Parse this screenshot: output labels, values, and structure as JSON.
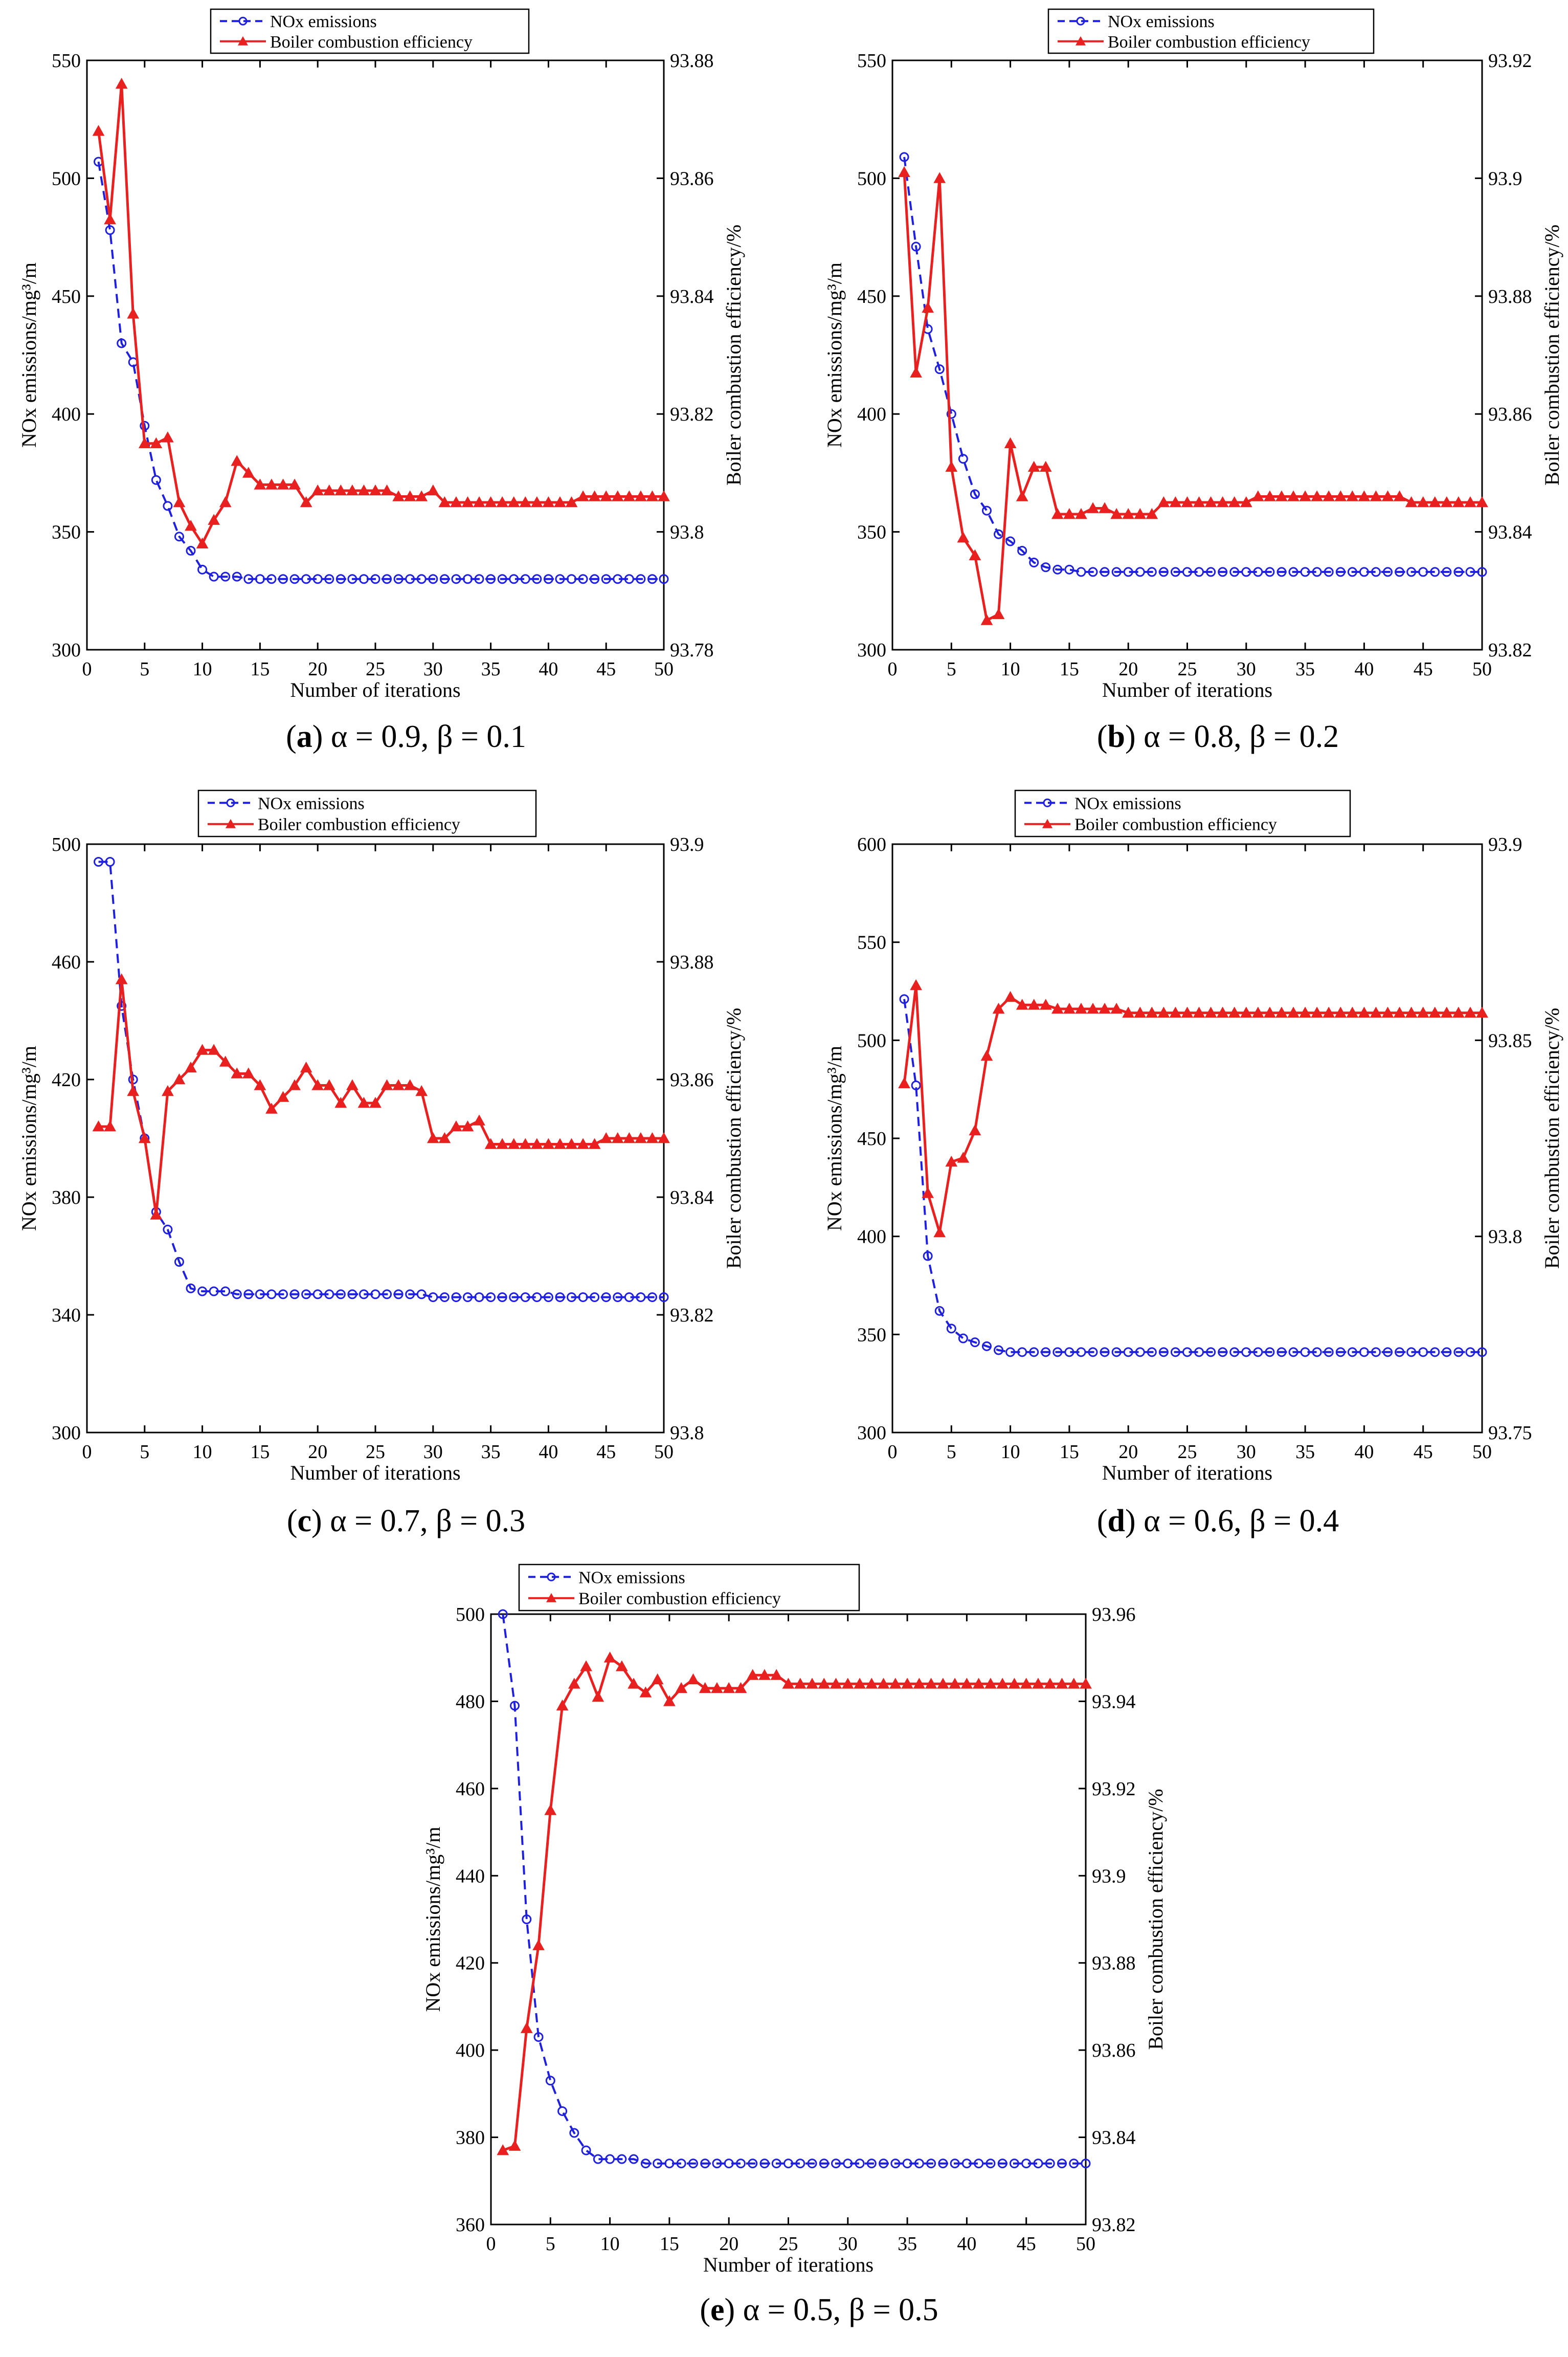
{
  "figure": {
    "legend_nox": "NOx emissions",
    "legend_eff": "Boiler combustion efficiency",
    "nox_color": "#1f1fe0",
    "eff_color": "#e8201f"
  },
  "chart_data": [
    {
      "id": "a",
      "type": "line",
      "caption": {
        "letter": "a",
        "text": " α = 0.9, β = 0.1"
      },
      "xlabel": "Number of iterations",
      "ylabel": "NOx emissions/mg³/m",
      "ylabel2": "Boiler combustion efficiency/%",
      "xlim": [
        0,
        50
      ],
      "ylim": [
        300,
        550
      ],
      "ylim2": [
        93.78,
        93.88
      ],
      "xticks": [
        "0",
        "5",
        "10",
        "15",
        "20",
        "25",
        "30",
        "35",
        "40",
        "45",
        "50"
      ],
      "yticks": [
        "300",
        "350",
        "400",
        "450",
        "500",
        "550"
      ],
      "yticks2": [
        "93.78",
        "93.8",
        "93.82",
        "93.84",
        "93.86",
        "93.88"
      ],
      "series": [
        {
          "name": "NOx emissions",
          "axis": "left",
          "marker": "circle",
          "values": [
            507,
            478,
            430,
            422,
            395,
            372,
            361,
            348,
            342,
            334,
            331,
            331,
            331,
            330,
            330,
            330,
            330,
            330,
            330,
            330,
            330,
            330,
            330,
            330,
            330,
            330,
            330,
            330,
            330,
            330,
            330,
            330,
            330,
            330,
            330,
            330,
            330,
            330,
            330,
            330,
            330,
            330,
            330,
            330,
            330,
            330,
            330,
            330,
            330,
            330
          ]
        },
        {
          "name": "Boiler combustion efficiency",
          "axis": "right",
          "marker": "triangle",
          "values": [
            93.868,
            93.853,
            93.876,
            93.837,
            93.815,
            93.815,
            93.816,
            93.805,
            93.801,
            93.798,
            93.802,
            93.805,
            93.812,
            93.81,
            93.808,
            93.808,
            93.808,
            93.808,
            93.805,
            93.807,
            93.807,
            93.807,
            93.807,
            93.807,
            93.807,
            93.807,
            93.806,
            93.806,
            93.806,
            93.807,
            93.805,
            93.805,
            93.805,
            93.805,
            93.805,
            93.805,
            93.805,
            93.805,
            93.805,
            93.805,
            93.805,
            93.805,
            93.806,
            93.806,
            93.806,
            93.806,
            93.806,
            93.806,
            93.806,
            93.806
          ]
        }
      ]
    },
    {
      "id": "b",
      "type": "line",
      "caption": {
        "letter": "b",
        "text": " α = 0.8, β = 0.2"
      },
      "xlabel": "Number of iterations",
      "ylabel": "NOx emissions/mg³/m",
      "ylabel2": "Boiler combustion efficiency/%",
      "xlim": [
        0,
        50
      ],
      "ylim": [
        300,
        550
      ],
      "ylim2": [
        93.82,
        93.92
      ],
      "xticks": [
        "0",
        "5",
        "10",
        "15",
        "20",
        "25",
        "30",
        "35",
        "40",
        "45",
        "50"
      ],
      "yticks": [
        "300",
        "350",
        "400",
        "450",
        "500",
        "550"
      ],
      "yticks2": [
        "93.82",
        "93.84",
        "93.86",
        "93.88",
        "93.9",
        "93.92"
      ],
      "series": [
        {
          "name": "NOx emissions",
          "axis": "left",
          "marker": "circle",
          "values": [
            509,
            471,
            436,
            419,
            400,
            381,
            366,
            359,
            349,
            346,
            342,
            337,
            335,
            334,
            334,
            333,
            333,
            333,
            333,
            333,
            333,
            333,
            333,
            333,
            333,
            333,
            333,
            333,
            333,
            333,
            333,
            333,
            333,
            333,
            333,
            333,
            333,
            333,
            333,
            333,
            333,
            333,
            333,
            333,
            333,
            333,
            333,
            333,
            333,
            333
          ]
        },
        {
          "name": "Boiler combustion efficiency",
          "axis": "right",
          "marker": "triangle",
          "values": [
            93.901,
            93.867,
            93.878,
            93.9,
            93.851,
            93.839,
            93.836,
            93.825,
            93.826,
            93.855,
            93.846,
            93.851,
            93.851,
            93.843,
            93.843,
            93.843,
            93.844,
            93.844,
            93.843,
            93.843,
            93.843,
            93.843,
            93.845,
            93.845,
            93.845,
            93.845,
            93.845,
            93.845,
            93.845,
            93.845,
            93.846,
            93.846,
            93.846,
            93.846,
            93.846,
            93.846,
            93.846,
            93.846,
            93.846,
            93.846,
            93.846,
            93.846,
            93.846,
            93.845,
            93.845,
            93.845,
            93.845,
            93.845,
            93.845,
            93.845
          ]
        }
      ]
    },
    {
      "id": "c",
      "type": "line",
      "caption": {
        "letter": "c",
        "text": " α = 0.7, β = 0.3"
      },
      "xlabel": "Number of iterations",
      "ylabel": "NOx emissions/mg³/m",
      "ylabel2": "Boiler combustion efficiency/%",
      "xlim": [
        0,
        50
      ],
      "ylim": [
        300,
        500
      ],
      "ylim2": [
        93.8,
        93.9
      ],
      "xticks": [
        "0",
        "5",
        "10",
        "15",
        "20",
        "25",
        "30",
        "35",
        "40",
        "45",
        "50"
      ],
      "yticks": [
        "300",
        "340",
        "380",
        "420",
        "460",
        "500"
      ],
      "yticks2": [
        "93.8",
        "93.82",
        "93.84",
        "93.86",
        "93.88",
        "93.9"
      ],
      "series": [
        {
          "name": "NOx emissions",
          "axis": "left",
          "marker": "circle",
          "values": [
            494,
            494,
            445,
            420,
            400,
            375,
            369,
            358,
            349,
            348,
            348,
            348,
            347,
            347,
            347,
            347,
            347,
            347,
            347,
            347,
            347,
            347,
            347,
            347,
            347,
            347,
            347,
            347,
            347,
            346,
            346,
            346,
            346,
            346,
            346,
            346,
            346,
            346,
            346,
            346,
            346,
            346,
            346,
            346,
            346,
            346,
            346,
            346,
            346,
            346
          ]
        },
        {
          "name": "Boiler combustion efficiency",
          "axis": "right",
          "marker": "triangle",
          "values": [
            93.852,
            93.852,
            93.877,
            93.858,
            93.85,
            93.837,
            93.858,
            93.86,
            93.862,
            93.865,
            93.865,
            93.863,
            93.861,
            93.861,
            93.859,
            93.855,
            93.857,
            93.859,
            93.862,
            93.859,
            93.859,
            93.856,
            93.859,
            93.856,
            93.856,
            93.859,
            93.859,
            93.859,
            93.858,
            93.85,
            93.85,
            93.852,
            93.852,
            93.853,
            93.849,
            93.849,
            93.849,
            93.849,
            93.849,
            93.849,
            93.849,
            93.849,
            93.849,
            93.849,
            93.85,
            93.85,
            93.85,
            93.85,
            93.85,
            93.85
          ]
        }
      ]
    },
    {
      "id": "d",
      "type": "line",
      "caption": {
        "letter": "d",
        "text": " α = 0.6, β = 0.4"
      },
      "xlabel": "Number of iterations",
      "ylabel": "NOx emissions/mg³/m",
      "ylabel2": "Boiler combustion efficiency/%",
      "xlim": [
        0,
        50
      ],
      "ylim": [
        300,
        600
      ],
      "ylim2": [
        93.75,
        93.9
      ],
      "xticks": [
        "0",
        "5",
        "10",
        "15",
        "20",
        "25",
        "30",
        "35",
        "40",
        "45",
        "50"
      ],
      "yticks": [
        "300",
        "350",
        "400",
        "450",
        "500",
        "550",
        "600"
      ],
      "yticks2": [
        "93.75",
        "93.8",
        "93.85",
        "93.9"
      ],
      "series": [
        {
          "name": "NOx emissions",
          "axis": "left",
          "marker": "circle",
          "values": [
            521,
            477,
            390,
            362,
            353,
            348,
            346,
            344,
            342,
            341,
            341,
            341,
            341,
            341,
            341,
            341,
            341,
            341,
            341,
            341,
            341,
            341,
            341,
            341,
            341,
            341,
            341,
            341,
            341,
            341,
            341,
            341,
            341,
            341,
            341,
            341,
            341,
            341,
            341,
            341,
            341,
            341,
            341,
            341,
            341,
            341,
            341,
            341,
            341,
            341
          ]
        },
        {
          "name": "Boiler combustion efficiency",
          "axis": "right",
          "marker": "triangle",
          "values": [
            93.839,
            93.864,
            93.811,
            93.801,
            93.819,
            93.82,
            93.827,
            93.846,
            93.858,
            93.861,
            93.859,
            93.859,
            93.859,
            93.858,
            93.858,
            93.858,
            93.858,
            93.858,
            93.858,
            93.857,
            93.857,
            93.857,
            93.857,
            93.857,
            93.857,
            93.857,
            93.857,
            93.857,
            93.857,
            93.857,
            93.857,
            93.857,
            93.857,
            93.857,
            93.857,
            93.857,
            93.857,
            93.857,
            93.857,
            93.857,
            93.857,
            93.857,
            93.857,
            93.857,
            93.857,
            93.857,
            93.857,
            93.857,
            93.857,
            93.857
          ]
        }
      ]
    },
    {
      "id": "e",
      "type": "line",
      "caption": {
        "letter": "e",
        "text": " α = 0.5, β = 0.5"
      },
      "xlabel": "Number of iterations",
      "ylabel": "NOx emissions/mg³/m",
      "ylabel2": "Boiler combustion efficiency/%",
      "xlim": [
        0,
        50
      ],
      "ylim": [
        360,
        500
      ],
      "ylim2": [
        93.82,
        93.96
      ],
      "xticks": [
        "0",
        "5",
        "10",
        "15",
        "20",
        "25",
        "30",
        "35",
        "40",
        "45",
        "50"
      ],
      "yticks": [
        "360",
        "380",
        "400",
        "420",
        "440",
        "460",
        "480",
        "500"
      ],
      "yticks2": [
        "93.82",
        "93.84",
        "93.86",
        "93.88",
        "93.9",
        "93.92",
        "93.94",
        "93.96"
      ],
      "series": [
        {
          "name": "NOx emissions",
          "axis": "left",
          "marker": "circle",
          "values": [
            500,
            479,
            430,
            403,
            393,
            386,
            381,
            377,
            375,
            375,
            375,
            375,
            374,
            374,
            374,
            374,
            374,
            374,
            374,
            374,
            374,
            374,
            374,
            374,
            374,
            374,
            374,
            374,
            374,
            374,
            374,
            374,
            374,
            374,
            374,
            374,
            374,
            374,
            374,
            374,
            374,
            374,
            374,
            374,
            374,
            374,
            374,
            374,
            374,
            374
          ]
        },
        {
          "name": "Boiler combustion efficiency",
          "axis": "right",
          "marker": "triangle",
          "values": [
            93.837,
            93.838,
            93.865,
            93.884,
            93.915,
            93.939,
            93.944,
            93.948,
            93.941,
            93.95,
            93.948,
            93.944,
            93.942,
            93.945,
            93.94,
            93.943,
            93.945,
            93.943,
            93.943,
            93.943,
            93.943,
            93.946,
            93.946,
            93.946,
            93.944,
            93.944,
            93.944,
            93.944,
            93.944,
            93.944,
            93.944,
            93.944,
            93.944,
            93.944,
            93.944,
            93.944,
            93.944,
            93.944,
            93.944,
            93.944,
            93.944,
            93.944,
            93.944,
            93.944,
            93.944,
            93.944,
            93.944,
            93.944,
            93.944,
            93.944
          ]
        }
      ]
    }
  ]
}
